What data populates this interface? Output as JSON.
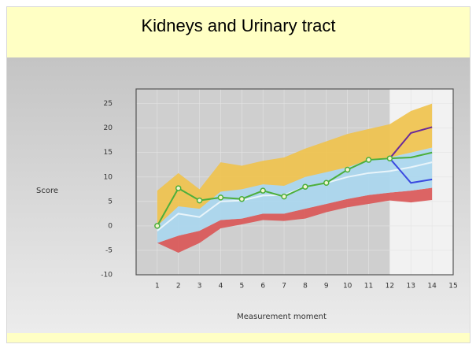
{
  "chart_data": {
    "type": "line",
    "title": "Kidneys and Urinary tract",
    "ylabel": "Score",
    "xlabel": "Measurement moment",
    "xlim": [
      0,
      15
    ],
    "ylim": [
      -10,
      28
    ],
    "xticks": [
      1,
      2,
      3,
      4,
      5,
      6,
      7,
      8,
      9,
      10,
      11,
      12,
      13,
      14,
      15
    ],
    "yticks": [
      -10,
      -5,
      0,
      5,
      10,
      15,
      20,
      25
    ],
    "projection_from": 12,
    "x": [
      1,
      2,
      3,
      4,
      5,
      6,
      7,
      8,
      9,
      10,
      11,
      12,
      13,
      14
    ],
    "bands": [
      {
        "color": "#d95454",
        "lower": [
          -3.5,
          -5.5,
          -3.5,
          -0.5,
          0.3,
          1.2,
          1,
          1.5,
          2.8,
          3.8,
          4.5,
          5.2,
          4.8,
          5.3
        ],
        "upper": [
          -3.5,
          -2,
          -1,
          1.2,
          1.5,
          2.5,
          2.5,
          3.5,
          4.5,
          5.5,
          6.3,
          6.8,
          7.2,
          7.8
        ]
      },
      {
        "color": "#a9d6ee",
        "lower": [
          -3.5,
          -2,
          -1,
          1.2,
          1.5,
          2.5,
          2.5,
          3.5,
          4.5,
          5.5,
          6.3,
          6.8,
          7.2,
          7.8
        ],
        "upper": [
          0,
          4,
          3.5,
          7,
          7.5,
          8.5,
          8.2,
          10,
          11,
          12,
          13.5,
          14,
          15,
          16
        ]
      },
      {
        "color": "#efc24a",
        "lower": [
          0,
          4,
          3.5,
          7,
          7.5,
          8.5,
          8.2,
          10,
          11,
          12,
          13.5,
          14,
          15,
          16
        ],
        "upper": [
          7.2,
          10.8,
          7.5,
          13,
          12.3,
          13.3,
          14,
          15.8,
          17.3,
          18.8,
          19.8,
          20.8,
          23.5,
          25
        ]
      }
    ],
    "series": [
      {
        "color": "#e8f4fa",
        "markers": false,
        "values": [
          -1,
          2.5,
          1.8,
          5,
          5.2,
          6.2,
          6.3,
          8,
          8.8,
          10,
          10.8,
          11.2,
          12,
          13
        ]
      },
      {
        "color": "#6a2a9a",
        "markers": false,
        "values": [
          null,
          null,
          null,
          null,
          null,
          null,
          null,
          null,
          null,
          null,
          null,
          13.8,
          19,
          20.2
        ]
      },
      {
        "color": "#3a4ae0",
        "markers": false,
        "values": [
          null,
          null,
          null,
          null,
          null,
          null,
          null,
          null,
          null,
          null,
          null,
          13.8,
          8.8,
          9.5
        ]
      },
      {
        "color": "#4caf3c",
        "markers": false,
        "values": [
          null,
          null,
          null,
          null,
          null,
          null,
          null,
          null,
          null,
          null,
          null,
          13.8,
          14,
          15
        ]
      },
      {
        "color": "#4caf3c",
        "markers": true,
        "values": [
          0,
          7.7,
          5.2,
          5.8,
          5.5,
          7.2,
          6,
          8,
          8.8,
          11.5,
          13.5,
          13.8,
          null,
          null
        ]
      }
    ]
  }
}
